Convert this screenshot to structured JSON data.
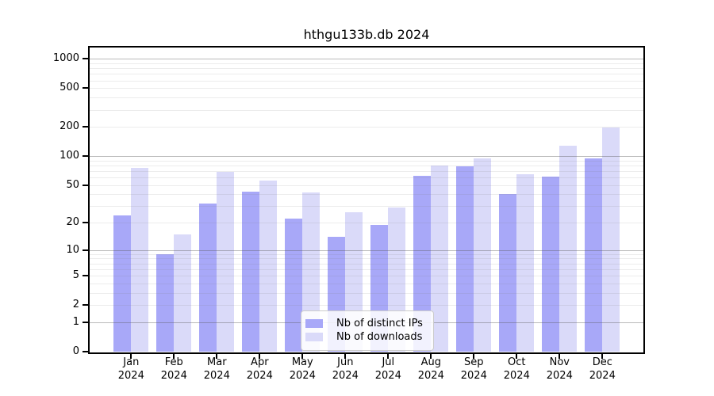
{
  "title": "hthgu133b.db 2024",
  "chart_data": {
    "type": "bar",
    "title": "hthgu133b.db 2024",
    "categories": [
      "Jan",
      "Feb",
      "Mar",
      "Apr",
      "May",
      "Jun",
      "Jul",
      "Aug",
      "Sep",
      "Oct",
      "Nov",
      "Dec"
    ],
    "year": "2024",
    "series": [
      {
        "name": "Nb of distinct IPs",
        "color": "#a8a8f8",
        "values": [
          24,
          9,
          32,
          43,
          22,
          14,
          19,
          62,
          79,
          40,
          61,
          94
        ]
      },
      {
        "name": "Nb of downloads",
        "color": "#dadaf9",
        "values": [
          76,
          15,
          68,
          56,
          42,
          26,
          29,
          80,
          94,
          65,
          128,
          197
        ]
      }
    ],
    "yticks": [
      0,
      1,
      2,
      5,
      10,
      20,
      50,
      100,
      200,
      500,
      1000
    ],
    "yscale": "symlog",
    "ylim": [
      0,
      1300
    ],
    "xlabel": "",
    "ylabel": "",
    "grid": true,
    "legend_position": "bottom-center"
  }
}
